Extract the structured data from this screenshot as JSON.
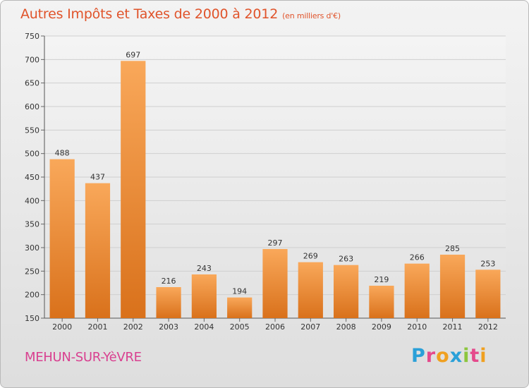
{
  "header": {
    "title": "Autres Impôts et Taxes de 2000 à 2012",
    "unit": "(en milliers d'€)"
  },
  "footer": {
    "city": "MEHUN-SUR-YèVRE",
    "logo": [
      "P",
      "r",
      "o",
      "x",
      "i",
      "t",
      "i"
    ]
  },
  "colors": {
    "bar_top": "#f9a85a",
    "bar_bottom": "#d9711b",
    "logo": [
      "#2aa0d8",
      "#e54a8c",
      "#f0a020",
      "#2aa0d8",
      "#8cc63e",
      "#e54a8c",
      "#f0a020"
    ]
  },
  "chart_data": {
    "type": "bar",
    "title": "Autres Impôts et Taxes de 2000 à 2012",
    "subtitle": "(en milliers d'€)",
    "xlabel": "",
    "ylabel": "",
    "categories": [
      "2000",
      "2001",
      "2002",
      "2003",
      "2004",
      "2005",
      "2006",
      "2007",
      "2008",
      "2009",
      "2010",
      "2011",
      "2012"
    ],
    "values": [
      488,
      437,
      697,
      216,
      243,
      194,
      297,
      269,
      263,
      219,
      266,
      285,
      253
    ],
    "ylim": [
      150,
      750
    ],
    "yticks": [
      150,
      200,
      250,
      300,
      350,
      400,
      450,
      500,
      550,
      600,
      650,
      700,
      750
    ],
    "grid": true,
    "legend": "none"
  }
}
